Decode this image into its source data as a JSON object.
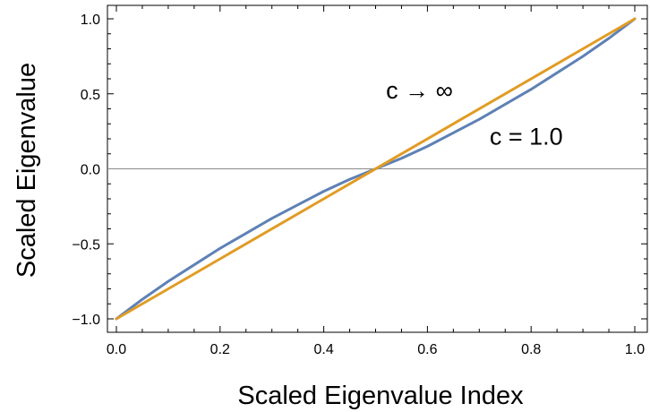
{
  "chart_data": {
    "type": "line",
    "title": "",
    "xlabel": "Scaled Eigenvalue Index",
    "ylabel": "Scaled Eigenvalue",
    "xlim": [
      0.0,
      1.0
    ],
    "ylim": [
      -1.07,
      1.07
    ],
    "x_ticks": [
      0.0,
      0.2,
      0.4,
      0.6,
      0.8,
      1.0
    ],
    "x_tick_labels": [
      "0.0",
      "0.2",
      "0.4",
      "0.6",
      "0.8",
      "1.0"
    ],
    "y_ticks": [
      -1.0,
      -0.5,
      0.0,
      0.5,
      1.0
    ],
    "y_tick_labels": [
      "−1.0",
      "−0.5",
      "0.0",
      "0.5",
      "1.0"
    ],
    "grid": false,
    "zero_line": true,
    "frame": true,
    "series": [
      {
        "name": "c = 1.0",
        "color": "#5E81B5",
        "x": [
          0.0,
          0.05,
          0.1,
          0.15,
          0.2,
          0.25,
          0.3,
          0.35,
          0.4,
          0.45,
          0.5,
          0.55,
          0.6,
          0.65,
          0.7,
          0.75,
          0.8,
          0.85,
          0.9,
          0.95,
          1.0
        ],
        "y": [
          -1.0,
          -0.87,
          -0.75,
          -0.64,
          -0.53,
          -0.43,
          -0.33,
          -0.24,
          -0.15,
          -0.07,
          0.0,
          0.07,
          0.15,
          0.24,
          0.33,
          0.43,
          0.53,
          0.64,
          0.75,
          0.87,
          1.0
        ]
      },
      {
        "name": "c → ∞",
        "color": "#E19C24",
        "x": [
          0.0,
          1.0
        ],
        "y": [
          -1.0,
          1.0
        ]
      }
    ],
    "annotations": [
      {
        "text": "c → ∞",
        "x": 0.52,
        "y": 0.47
      },
      {
        "text": "c = 1.0",
        "x": 0.72,
        "y": 0.16
      }
    ]
  }
}
